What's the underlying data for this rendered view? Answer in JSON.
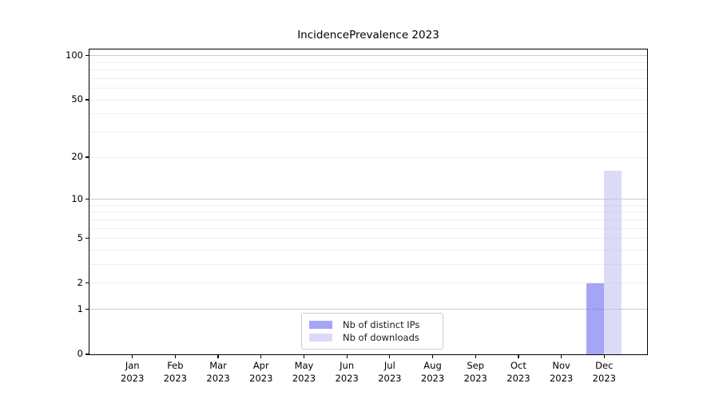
{
  "figure": {
    "title": "IncidencePrevalence 2023",
    "background_color": "#ffffff"
  },
  "chart_data": {
    "type": "bar",
    "title": "IncidencePrevalence 2023",
    "x_months": [
      "Jan",
      "Feb",
      "Mar",
      "Apr",
      "May",
      "Jun",
      "Jul",
      "Aug",
      "Sep",
      "Oct",
      "Nov",
      "Dec"
    ],
    "x_year": "2023",
    "series": [
      {
        "name": "Nb of distinct IPs",
        "values": [
          0,
          0,
          0,
          0,
          0,
          0,
          0,
          0,
          0,
          0,
          0,
          2
        ],
        "color": "#6e6ef0",
        "alpha": 0.62
      },
      {
        "name": "Nb of downloads",
        "values": [
          0,
          0,
          0,
          0,
          0,
          0,
          0,
          0,
          0,
          0,
          0,
          16
        ],
        "color": "#bebef2",
        "alpha": 0.55
      }
    ],
    "yscale": "log10(1+y)",
    "ylim": [
      0,
      110
    ],
    "ytick_values": [
      0,
      1,
      2,
      5,
      10,
      20,
      50,
      100
    ],
    "ytick_labels": [
      "0",
      "1",
      "2",
      "5",
      "10",
      "20",
      "50",
      "100"
    ],
    "grid": {
      "major_values": [
        1,
        10,
        100
      ],
      "minor_values": [
        2,
        3,
        4,
        5,
        6,
        7,
        8,
        9,
        20,
        30,
        40,
        50,
        60,
        70,
        80,
        90
      ],
      "major_color": "#cbcbcb",
      "minor_color": "#efefef"
    },
    "legend": {
      "entries": [
        "Nb of distinct IPs",
        "Nb of downloads"
      ],
      "position": "lower center",
      "border_color": "#cccccc"
    },
    "spine_color": "#000000"
  }
}
